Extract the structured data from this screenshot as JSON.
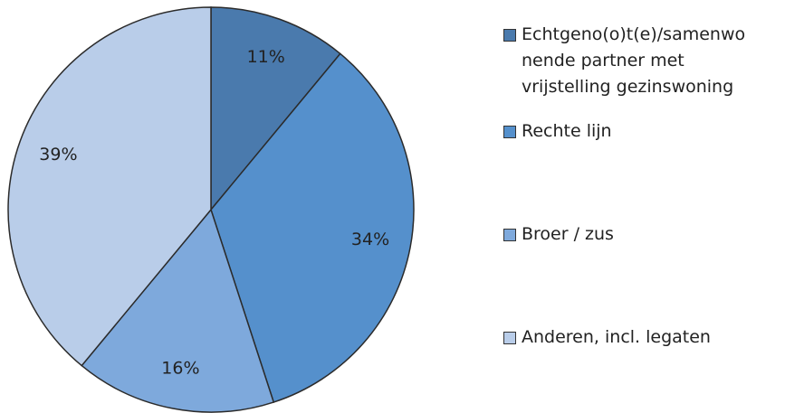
{
  "chart_data": {
    "type": "pie",
    "categories": [
      "Echtgeno(o)t(e)/samenwonende partner met vrijstelling gezinswoning",
      "Rechte lijn",
      "Broer / zus",
      "Anderen, incl. legaten"
    ],
    "values": [
      11,
      34,
      16,
      39
    ],
    "value_labels": [
      "11%",
      "34%",
      "16%",
      "39%"
    ],
    "colors": [
      "#4a7aad",
      "#5590cc",
      "#7ea9dc",
      "#b9cde9"
    ],
    "legend": "right"
  }
}
